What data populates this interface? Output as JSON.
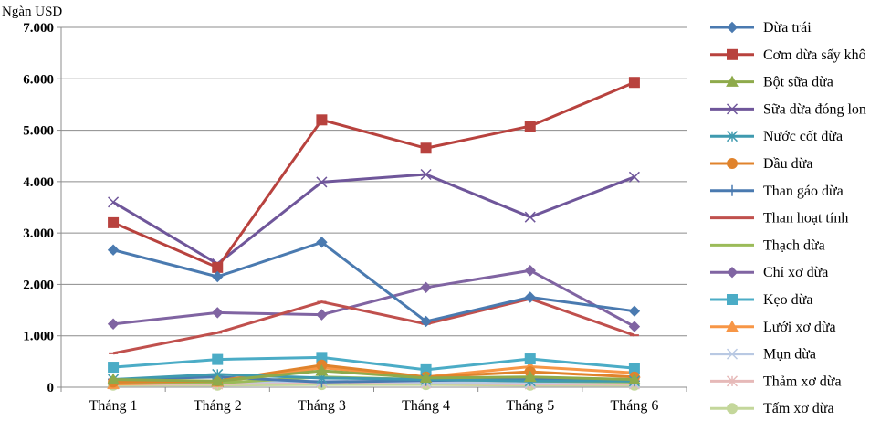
{
  "chart_data": {
    "type": "line",
    "ylabel": "Ngàn USD",
    "xlabel": "",
    "categories": [
      "Tháng 1",
      "Tháng 2",
      "Tháng 3",
      "Tháng 4",
      "Tháng 5",
      "Tháng 6"
    ],
    "ylim": [
      0,
      7000
    ],
    "yticks": [
      {
        "value": 0,
        "label": "0"
      },
      {
        "value": 1000,
        "label": "1.000"
      },
      {
        "value": 2000,
        "label": "2.000"
      },
      {
        "value": 3000,
        "label": "3.000"
      },
      {
        "value": 4000,
        "label": "4.000"
      },
      {
        "value": 5000,
        "label": "5.000"
      },
      {
        "value": 6000,
        "label": "6.000"
      },
      {
        "value": 7000,
        "label": "7.000"
      }
    ],
    "grid": true,
    "legend_position": "right",
    "series": [
      {
        "name": "Dừa trái",
        "color": "#4a7ab0",
        "marker": "diamond",
        "values": [
          2670,
          2150,
          2820,
          1280,
          1750,
          1480
        ]
      },
      {
        "name": "Cơm dừa sấy khô",
        "color": "#b8423e",
        "marker": "square",
        "values": [
          3200,
          2330,
          5200,
          4650,
          5080,
          5930
        ]
      },
      {
        "name": "Bột sữa dừa",
        "color": "#8eaa4b",
        "marker": "triangle",
        "values": [
          150,
          120,
          320,
          180,
          200,
          150
        ]
      },
      {
        "name": "Sữa dừa đóng lon",
        "color": "#6f569a",
        "marker": "x",
        "values": [
          3600,
          2400,
          3990,
          4140,
          3310,
          4090
        ]
      },
      {
        "name": "Nước cốt dừa",
        "color": "#3f9aaf",
        "marker": "star",
        "values": [
          150,
          250,
          180,
          150,
          120,
          120
        ]
      },
      {
        "name": "Dầu dừa",
        "color": "#e0832c",
        "marker": "circle",
        "values": [
          100,
          120,
          430,
          200,
          300,
          200
        ]
      },
      {
        "name": "Than gáo dừa",
        "color": "#4a7ab0",
        "marker": "plus",
        "values": [
          150,
          200,
          100,
          130,
          150,
          120
        ]
      },
      {
        "name": "Than hoạt tính",
        "color": "#c0504d",
        "marker": "dash",
        "values": [
          660,
          1060,
          1660,
          1230,
          1720,
          1010
        ]
      },
      {
        "name": "Thạch dừa",
        "color": "#9bbb59",
        "marker": "dash",
        "values": [
          100,
          80,
          200,
          150,
          120,
          100
        ]
      },
      {
        "name": "Chỉ xơ dừa",
        "color": "#8064a2",
        "marker": "diamond",
        "values": [
          1230,
          1450,
          1410,
          1940,
          2270,
          1180
        ]
      },
      {
        "name": "Kẹo dừa",
        "color": "#4bacc6",
        "marker": "square",
        "values": [
          390,
          540,
          580,
          340,
          550,
          370
        ]
      },
      {
        "name": "Lưới xơ dừa",
        "color": "#f79646",
        "marker": "triangle",
        "values": [
          60,
          100,
          380,
          200,
          400,
          280
        ]
      },
      {
        "name": "Mụn dừa",
        "color": "#b9c9e3",
        "marker": "x",
        "values": [
          80,
          100,
          120,
          100,
          80,
          80
        ]
      },
      {
        "name": "Thảm xơ dừa",
        "color": "#e6b9b8",
        "marker": "star",
        "values": [
          60,
          60,
          100,
          80,
          60,
          60
        ]
      },
      {
        "name": "Tấm xơ dừa",
        "color": "#c4d79b",
        "marker": "circle",
        "values": [
          40,
          40,
          50,
          50,
          40,
          40
        ]
      }
    ]
  }
}
